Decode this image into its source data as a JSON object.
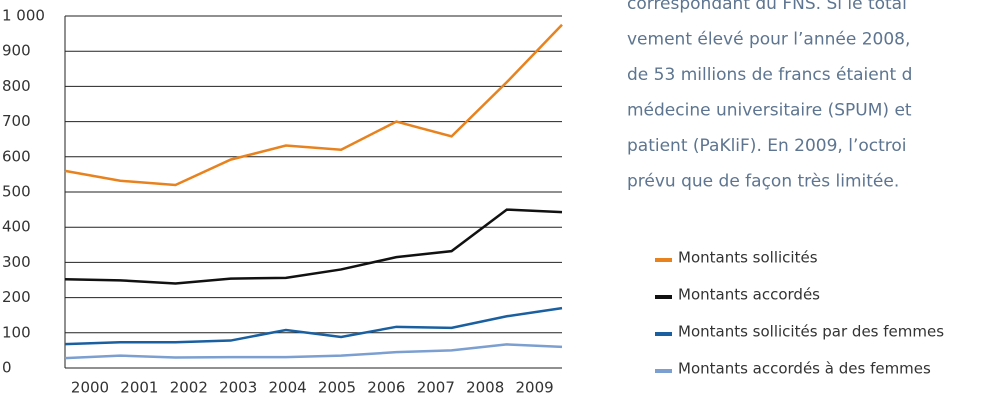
{
  "chart_data": {
    "type": "line",
    "categories": [
      "2000",
      "2001",
      "2002",
      "2003",
      "2004",
      "2005",
      "2006",
      "2007",
      "2008",
      "2009"
    ],
    "series": [
      {
        "name": "Montants sollicités",
        "color": "#e8821e",
        "values": [
          560,
          532,
          520,
          592,
          632,
          620,
          700,
          658,
          812,
          975
        ]
      },
      {
        "name": "Montants accordés",
        "color": "#111111",
        "values": [
          252,
          249,
          240,
          254,
          256,
          280,
          315,
          332,
          450,
          443
        ]
      },
      {
        "name": "Montants sollicités par des femmes",
        "color": "#1a5fa0",
        "values": [
          68,
          73,
          73,
          78,
          108,
          88,
          117,
          114,
          147,
          170
        ]
      },
      {
        "name": "Montants accordés à des femmes",
        "color": "#7b9fd0",
        "values": [
          28,
          35,
          30,
          31,
          31,
          35,
          45,
          50,
          67,
          60
        ]
      }
    ],
    "ylim": [
      0,
      1000
    ],
    "yticks": [
      0,
      100,
      200,
      300,
      400,
      500,
      600,
      700,
      800,
      900,
      {
        "value": 1000,
        "label": "1 000"
      }
    ],
    "grid": true
  },
  "side_text": [
    "correspondant du FNS. Si le total",
    "vement élevé pour l’année 2008,",
    "de 53 millions de francs étaient d",
    "médecine universitaire (SPUM) et",
    "patient (PaKliF). En 2009, l’octroi",
    "prévu que de façon très limitée."
  ]
}
